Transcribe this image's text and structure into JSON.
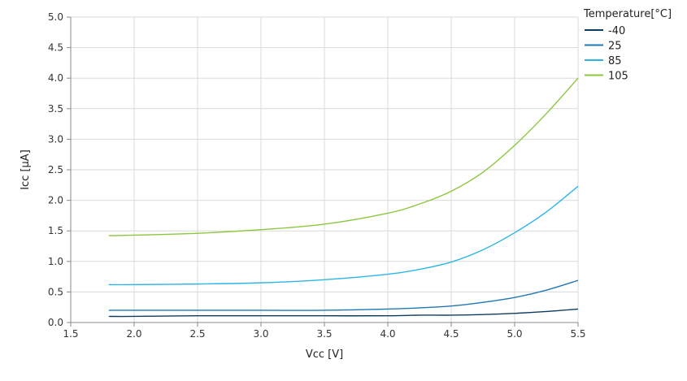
{
  "chart_data": {
    "type": "line",
    "title": "",
    "xlabel": "Vcc [V]",
    "ylabel": "Icc [µA]",
    "xlim": [
      1.5,
      5.5
    ],
    "ylim": [
      0.0,
      5.0
    ],
    "x_ticks": [
      "1.5",
      "2.0",
      "2.5",
      "3.0",
      "3.5",
      "4.0",
      "4.5",
      "5.0",
      "5.5"
    ],
    "y_ticks": [
      "0.0",
      "0.5",
      "1.0",
      "1.5",
      "2.0",
      "2.5",
      "3.0",
      "3.5",
      "4.0",
      "4.5",
      "5.0"
    ],
    "grid": true,
    "legend": {
      "title": "Temperature[°C]",
      "placement": "top-right"
    },
    "x": [
      1.8,
      2.0,
      2.5,
      3.0,
      3.5,
      4.0,
      4.25,
      4.5,
      4.75,
      5.0,
      5.25,
      5.5
    ],
    "series": [
      {
        "name": "-40",
        "color": "#0d3c61",
        "values": [
          0.1,
          0.1,
          0.11,
          0.11,
          0.11,
          0.11,
          0.12,
          0.12,
          0.13,
          0.15,
          0.18,
          0.22
        ]
      },
      {
        "name": "25",
        "color": "#1f77b4",
        "values": [
          0.2,
          0.2,
          0.2,
          0.2,
          0.2,
          0.22,
          0.24,
          0.27,
          0.33,
          0.41,
          0.53,
          0.69
        ]
      },
      {
        "name": "85",
        "color": "#2cb5e8",
        "values": [
          0.62,
          0.62,
          0.63,
          0.65,
          0.7,
          0.79,
          0.87,
          0.99,
          1.19,
          1.47,
          1.81,
          2.23
        ]
      },
      {
        "name": "105",
        "color": "#8cc63f",
        "values": [
          1.42,
          1.43,
          1.46,
          1.52,
          1.61,
          1.79,
          1.94,
          2.15,
          2.46,
          2.9,
          3.42,
          4.0
        ]
      }
    ]
  }
}
